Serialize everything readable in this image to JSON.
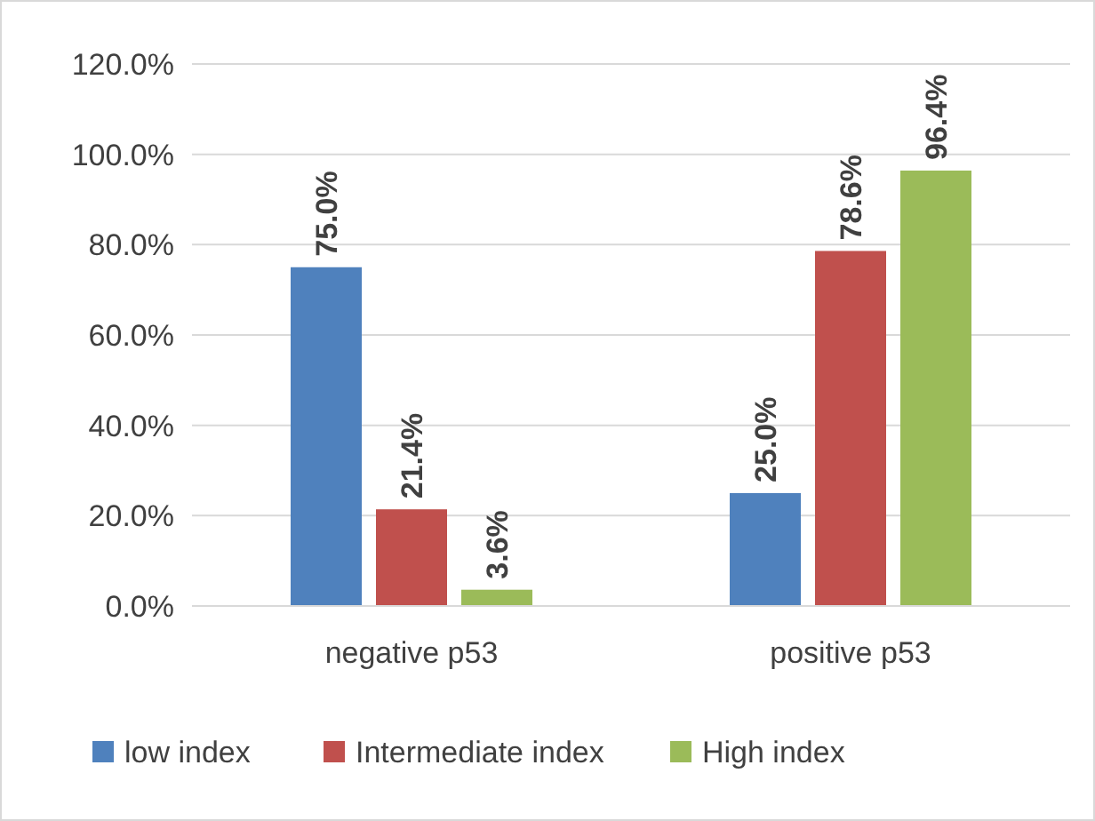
{
  "chart_data": {
    "type": "bar",
    "categories": [
      "negative p53",
      "positive p53"
    ],
    "series": [
      {
        "name": "low index",
        "color": "#4f81bd",
        "values": [
          75.0,
          25.0
        ],
        "value_labels": [
          "75.0%",
          "25.0%"
        ]
      },
      {
        "name": "Intermediate index",
        "color": "#c0504d",
        "values": [
          21.4,
          78.6
        ],
        "value_labels": [
          "21.4%",
          "78.6%"
        ]
      },
      {
        "name": "High index",
        "color": "#9bbb59",
        "values": [
          3.6,
          96.4
        ],
        "value_labels": [
          "3.6%",
          "96.4%"
        ]
      }
    ],
    "ylim": [
      0,
      120
    ],
    "yticks": [
      {
        "value": 0,
        "label": "0.0%"
      },
      {
        "value": 20,
        "label": "20.0%"
      },
      {
        "value": 40,
        "label": "40.0%"
      },
      {
        "value": 60,
        "label": "60.0%"
      },
      {
        "value": 80,
        "label": "80.0%"
      },
      {
        "value": 100,
        "label": "100.0%"
      },
      {
        "value": 120,
        "label": "120.0%"
      }
    ],
    "grid": "y",
    "legend": "bottom"
  }
}
